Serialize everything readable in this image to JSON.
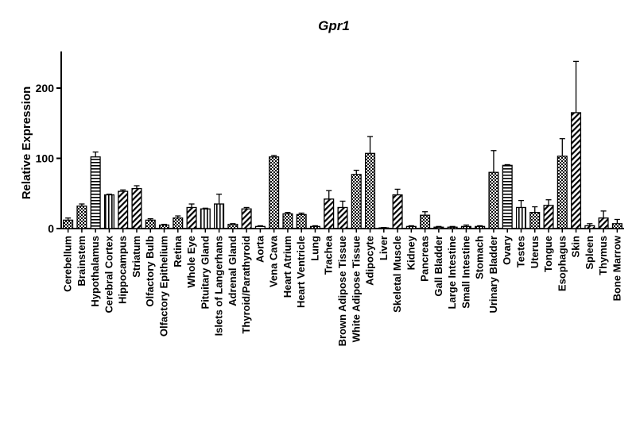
{
  "chart_data": {
    "type": "bar",
    "title": "Gpr1",
    "xlabel": "",
    "ylabel": "Relative Expression",
    "ylim": [
      0,
      250
    ],
    "yticks": [
      0,
      100,
      200
    ],
    "grid": false,
    "categories": [
      "Cerebellum",
      "Brainstem",
      "Hypothalamus",
      "Cerebral Cortex",
      "Hippocampus",
      "Striatum",
      "Olfactory Bulb",
      "Olfactory Epithelium",
      "Retina",
      "Whole Eye",
      "Pituitary Gland",
      "Islets of Langerhans",
      "Adrenal Gland",
      "Thyroid/Parathyroid",
      "Aorta",
      "Vena Cava",
      "Heart Atrium",
      "Heart Ventricle",
      "Lung",
      "Trachea",
      "Brown Adipose Tissue",
      "White Adipose Tissue",
      "Adipocyte",
      "Liver",
      "Skeletal Muscle",
      "Kidney",
      "Pancreas",
      "Gall Bladder",
      "Large Intestine",
      "Small Intestine",
      "Stomach",
      "Urinary Bladder",
      "Ovary",
      "Testes",
      "Uterus",
      "Tongue",
      "Esophagus",
      "Skin",
      "Spleen",
      "Thymus",
      "Bone Marrow"
    ],
    "values": [
      12,
      32,
      102,
      48,
      53,
      57,
      12,
      5,
      15,
      30,
      28,
      35,
      6,
      28,
      3,
      102,
      21,
      20,
      3,
      42,
      30,
      77,
      107,
      1,
      48,
      3,
      19,
      2,
      2,
      3,
      3,
      80,
      90,
      30,
      23,
      33,
      103,
      165,
      4,
      15,
      7
    ],
    "errors": [
      3,
      3,
      7,
      1,
      2,
      4,
      2,
      1,
      3,
      5,
      1,
      14,
      1,
      2,
      1,
      2,
      2,
      2,
      1,
      12,
      9,
      6,
      24,
      0.5,
      8,
      1,
      5,
      1,
      1,
      2,
      1,
      31,
      1,
      10,
      8,
      8,
      25,
      73,
      3,
      10,
      6
    ],
    "patterns": [
      "checker",
      "checker",
      "hlines",
      "vlines",
      "diag",
      "diag",
      "checker",
      "checker",
      "checker",
      "diag",
      "vlines",
      "vlines",
      "checker",
      "diag",
      "plain",
      "checker",
      "checker",
      "checker",
      "checker",
      "diag",
      "diag",
      "checker",
      "checker",
      "plain",
      "diag",
      "checker",
      "checker",
      "diag",
      "checker",
      "checker",
      "checker",
      "checker",
      "hlines",
      "vlines",
      "checker",
      "diag",
      "checker",
      "diag",
      "diag",
      "diag",
      "checker"
    ]
  }
}
